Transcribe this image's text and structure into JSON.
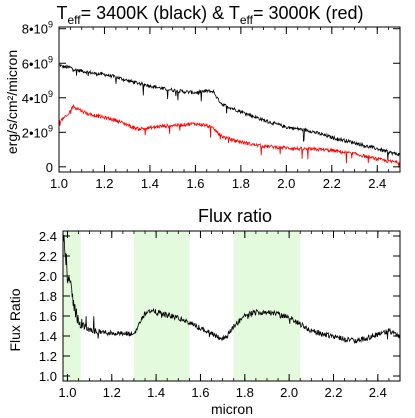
{
  "chart_data": [
    {
      "type": "line",
      "title": "T_eff= 3400K (black) &  T_eff= 3000K (red)",
      "title_parts": {
        "t1": "T",
        "sub1": "eff",
        "mid": "= 3400K (black) &  ",
        "t2": "T",
        "sub2": "eff",
        "end": "= 3000K (red)"
      },
      "xlabel": "",
      "ylabel": "erg/s/cm²/micron",
      "xlim": [
        1.0,
        2.5
      ],
      "ylim": [
        -300000000.0,
        8100000000.0
      ],
      "x_ticks": [
        1.0,
        1.2,
        1.4,
        1.6,
        1.8,
        2.0,
        2.2,
        2.4
      ],
      "x_tick_labels": [
        "1.0",
        "1.2",
        "1.4",
        "1.6",
        "1.8",
        "2.0",
        "2.2",
        "2.4"
      ],
      "y_ticks": [
        0,
        2000000000.0,
        4000000000.0,
        6000000000.0,
        8000000000.0
      ],
      "y_tick_labels": [
        {
          "base": "0",
          "exp": ""
        },
        {
          "base": "2•10",
          "exp": "9"
        },
        {
          "base": "4•10",
          "exp": "9"
        },
        {
          "base": "6•10",
          "exp": "9"
        },
        {
          "base": "8•10",
          "exp": "9"
        }
      ],
      "series": [
        {
          "color": "#000000",
          "x": [
            0.98,
            1.0,
            1.02,
            1.05,
            1.08,
            1.12,
            1.16,
            1.2,
            1.25,
            1.3,
            1.35,
            1.4,
            1.45,
            1.5,
            1.55,
            1.6,
            1.65,
            1.68,
            1.7,
            1.72,
            1.75,
            1.78,
            1.82,
            1.86,
            1.9,
            1.95,
            2.0,
            2.05,
            2.1,
            2.15,
            2.2,
            2.25,
            2.3,
            2.35,
            2.4,
            2.45,
            2.5
          ],
          "y": [
            6000000000.0,
            5900000000.0,
            5800000000.0,
            5750000000.0,
            5600000000.0,
            5500000000.0,
            5400000000.0,
            5350000000.0,
            5200000000.0,
            5000000000.0,
            4850000000.0,
            4700000000.0,
            4550000000.0,
            4450000000.0,
            4350000000.0,
            4300000000.0,
            4400000000.0,
            4350000000.0,
            3900000000.0,
            3600000000.0,
            3450000000.0,
            3300000000.0,
            3100000000.0,
            2900000000.0,
            2700000000.0,
            2500000000.0,
            2300000000.0,
            2200000000.0,
            2100000000.0,
            1900000000.0,
            1700000000.0,
            1550000000.0,
            1400000000.0,
            1200000000.0,
            1050000000.0,
            850000000.0,
            700000000.0
          ]
        },
        {
          "color": "#ff0000",
          "x": [
            0.98,
            1.0,
            1.02,
            1.04,
            1.06,
            1.08,
            1.1,
            1.12,
            1.15,
            1.2,
            1.25,
            1.3,
            1.32,
            1.35,
            1.4,
            1.45,
            1.5,
            1.55,
            1.6,
            1.65,
            1.68,
            1.7,
            1.72,
            1.75,
            1.8,
            1.85,
            1.9,
            1.95,
            2.0,
            2.05,
            2.1,
            2.15,
            2.2,
            2.25,
            2.3,
            2.35,
            2.4,
            2.45,
            2.5
          ],
          "y": [
            2200000000.0,
            2600000000.0,
            2800000000.0,
            3000000000.0,
            3500000000.0,
            3400000000.0,
            3250000000.0,
            3100000000.0,
            3000000000.0,
            2850000000.0,
            2700000000.0,
            2450000000.0,
            2300000000.0,
            2200000000.0,
            2250000000.0,
            2350000000.0,
            2400000000.0,
            2450000000.0,
            2500000000.0,
            2400000000.0,
            2200000000.0,
            1950000000.0,
            1750000000.0,
            1600000000.0,
            1450000000.0,
            1300000000.0,
            1200000000.0,
            1150000000.0,
            1100000000.0,
            1050000000.0,
            1020000000.0,
            1000000000.0,
            950000000.0,
            850000000.0,
            750000000.0,
            600000000.0,
            450000000.0,
            320000000.0,
            250000000.0
          ]
        }
      ]
    },
    {
      "type": "line",
      "title": "Flux ratio",
      "xlabel": "micron",
      "ylabel": "Flux Ratio",
      "xlim": [
        0.98,
        2.5
      ],
      "ylim": [
        0.95,
        2.45
      ],
      "x_ticks": [
        1.0,
        1.2,
        1.4,
        1.6,
        1.8,
        2.0,
        2.2,
        2.4
      ],
      "x_tick_labels": [
        "1.0",
        "1.2",
        "1.4",
        "1.6",
        "1.8",
        "2.0",
        "2.2",
        "2.4"
      ],
      "y_ticks": [
        1.0,
        1.2,
        1.4,
        1.6,
        1.8,
        2.0,
        2.2,
        2.4
      ],
      "y_tick_labels": [
        "1.0",
        "1.2",
        "1.4",
        "1.6",
        "1.8",
        "2.0",
        "2.2",
        "2.4"
      ],
      "shaded_bands": [
        {
          "x0": 0.98,
          "x1": 1.06,
          "color": "#e3fadc"
        },
        {
          "x0": 1.3,
          "x1": 1.55,
          "color": "#e3fadc"
        },
        {
          "x0": 1.75,
          "x1": 2.05,
          "color": "#e3fadc"
        }
      ],
      "series": [
        {
          "color": "#000000",
          "x": [
            0.98,
            0.99,
            1.0,
            1.01,
            1.02,
            1.04,
            1.06,
            1.08,
            1.1,
            1.15,
            1.2,
            1.25,
            1.3,
            1.32,
            1.34,
            1.36,
            1.4,
            1.45,
            1.5,
            1.55,
            1.6,
            1.65,
            1.7,
            1.72,
            1.75,
            1.8,
            1.85,
            1.9,
            1.95,
            2.0,
            2.05,
            2.1,
            2.15,
            2.2,
            2.25,
            2.3,
            2.35,
            2.4,
            2.45,
            2.5
          ],
          "y": [
            2.4,
            2.25,
            2.0,
            1.95,
            1.8,
            1.62,
            1.52,
            1.48,
            1.46,
            1.44,
            1.43,
            1.42,
            1.42,
            1.5,
            1.6,
            1.65,
            1.64,
            1.61,
            1.58,
            1.53,
            1.48,
            1.43,
            1.37,
            1.4,
            1.5,
            1.6,
            1.64,
            1.64,
            1.62,
            1.58,
            1.52,
            1.45,
            1.42,
            1.4,
            1.37,
            1.35,
            1.38,
            1.42,
            1.45,
            1.4
          ]
        }
      ]
    }
  ]
}
